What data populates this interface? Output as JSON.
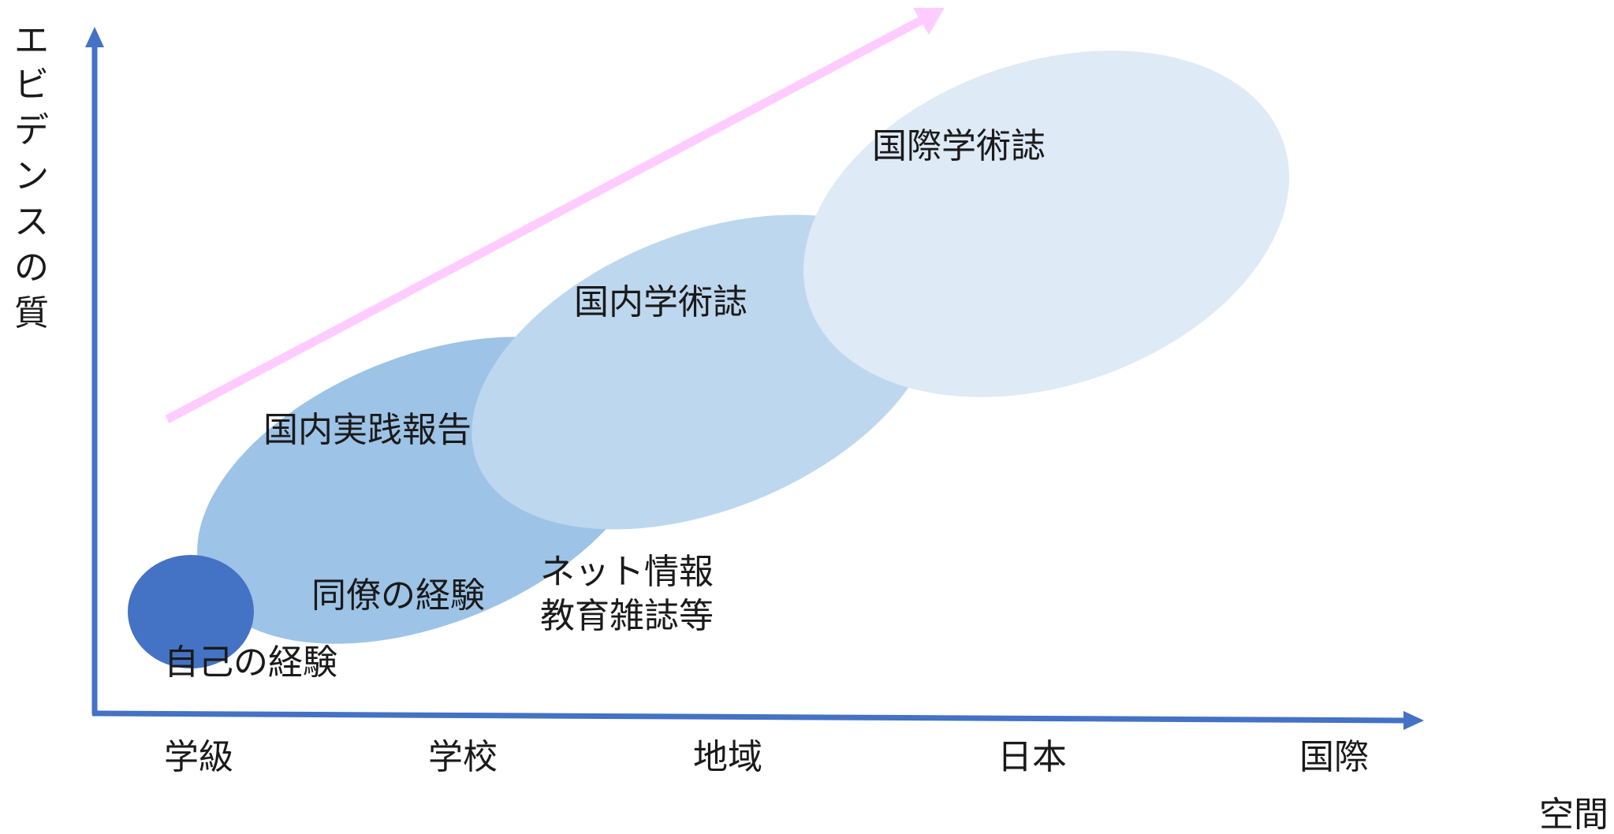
{
  "colors": {
    "axis": "#4472C4",
    "self_ellipse": "#4472C4",
    "practice_ellipse": "#9DC3E6",
    "domestic_ellipse": "#BDD7EE",
    "international_ellipse": "#DEEAF6",
    "trend_arrow": "#FFCCFF",
    "text": "#1a1a1a"
  },
  "axes": {
    "y_label_chars": [
      "エ",
      "ビ",
      "デ",
      "ン",
      "ス",
      "の",
      "質"
    ],
    "x_label": "空間",
    "x_ticks": [
      "学級",
      "学校",
      "地域",
      "日本",
      "国際"
    ]
  },
  "regions": {
    "self": "自己の経験",
    "colleague": "同僚の経験",
    "practice_report": "国内実践報告",
    "domestic_journal": "国内学術誌",
    "international_journal": "国際学術誌",
    "net_info_line1": "ネット情報",
    "net_info_line2": "教育雑誌等"
  }
}
